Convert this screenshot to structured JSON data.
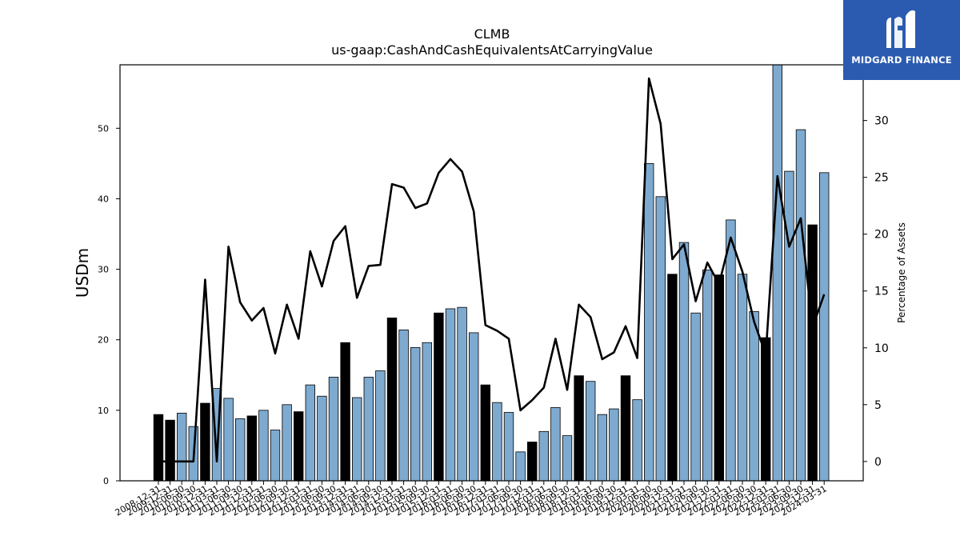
{
  "chart_data": {
    "type": "bar",
    "title": "CLMB",
    "subtitle": "us-gaap:CashAndCashEquivalentsAtCarryingValue",
    "ylabel": "USDm",
    "y2label": "Percentage of Assets",
    "ylim": [
      0,
      59
    ],
    "y2lim": [
      -1.7,
      34.9
    ],
    "yticks": [
      0,
      10,
      20,
      30,
      40,
      50
    ],
    "y2ticks": [
      0,
      5,
      10,
      15,
      20,
      25,
      30
    ],
    "colors": {
      "q4_bar": "#000000",
      "other_bar": "#7eaad0",
      "line": "#000000"
    },
    "categories": [
      "2008-12-31",
      "2009-12-31",
      "2010-06-30",
      "2010-09-30",
      "2010-12-31",
      "2011-03-31",
      "2011-06-30",
      "2011-09-30",
      "2011-12-31",
      "2012-03-31",
      "2012-06-30",
      "2012-09-30",
      "2012-12-31",
      "2013-03-31",
      "2013-06-30",
      "2013-09-30",
      "2013-12-31",
      "2014-03-31",
      "2014-06-30",
      "2014-09-30",
      "2014-12-31",
      "2015-03-31",
      "2015-06-30",
      "2015-09-30",
      "2015-12-31",
      "2016-03-31",
      "2016-06-30",
      "2016-09-30",
      "2016-12-31",
      "2017-03-31",
      "2017-06-30",
      "2017-09-30",
      "2017-12-31",
      "2018-03-31",
      "2018-06-30",
      "2018-09-30",
      "2018-12-31",
      "2019-03-31",
      "2019-06-30",
      "2019-09-30",
      "2019-12-31",
      "2020-03-31",
      "2020-06-30",
      "2020-09-30",
      "2020-12-31",
      "2021-03-31",
      "2021-06-30",
      "2021-09-30",
      "2021-12-31",
      "2022-03-31",
      "2022-06-30",
      "2022-09-30",
      "2022-12-31",
      "2023-03-31",
      "2023-06-30",
      "2023-09-30",
      "2023-12-31",
      "2024-03-31"
    ],
    "series": [
      {
        "kind": "bar",
        "axis": "left",
        "values": [
          9.4,
          8.6,
          9.6,
          7.7,
          11.0,
          13.1,
          11.7,
          8.8,
          9.2,
          10.0,
          7.2,
          10.8,
          9.8,
          13.6,
          12.0,
          14.7,
          19.6,
          11.8,
          14.7,
          15.6,
          23.1,
          21.4,
          18.9,
          19.6,
          23.8,
          24.4,
          24.6,
          21.0,
          13.6,
          11.1,
          9.7,
          4.1,
          5.5,
          7.0,
          10.4,
          6.4,
          14.9,
          14.1,
          9.4,
          10.2,
          14.9,
          11.5,
          45.0,
          40.3,
          29.3,
          33.8,
          23.8,
          29.9,
          29.2,
          37.0,
          29.3,
          24.0,
          20.3,
          59.5,
          43.9,
          49.8,
          36.3,
          43.7
        ],
        "q4": [
          true,
          true,
          false,
          false,
          true,
          false,
          false,
          false,
          true,
          false,
          false,
          false,
          true,
          false,
          false,
          false,
          true,
          false,
          false,
          false,
          true,
          false,
          false,
          false,
          true,
          false,
          false,
          false,
          true,
          false,
          false,
          false,
          true,
          false,
          false,
          false,
          true,
          false,
          false,
          false,
          true,
          false,
          false,
          false,
          true,
          false,
          false,
          false,
          true,
          false,
          false,
          false,
          true,
          false,
          false,
          false,
          true,
          false
        ]
      },
      {
        "kind": "line",
        "axis": "right",
        "values": [
          0.0,
          0.0,
          0.0,
          0.0,
          16.0,
          0.0,
          18.9,
          14.0,
          12.4,
          13.5,
          9.5,
          13.8,
          10.8,
          18.5,
          15.4,
          19.4,
          20.7,
          14.4,
          17.2,
          17.3,
          24.4,
          24.1,
          22.3,
          22.7,
          25.4,
          26.6,
          25.5,
          22.0,
          12.0,
          11.5,
          10.8,
          4.5,
          5.4,
          6.5,
          10.8,
          6.3,
          13.8,
          12.7,
          9.0,
          9.6,
          11.9,
          9.1,
          33.7,
          29.7,
          17.8,
          19.1,
          14.1,
          17.5,
          15.6,
          19.7,
          16.7,
          12.3,
          9.4,
          25.1,
          18.9,
          21.4,
          11.8,
          14.7
        ]
      }
    ]
  },
  "logo": {
    "text": "MIDGARD FINANCE"
  }
}
